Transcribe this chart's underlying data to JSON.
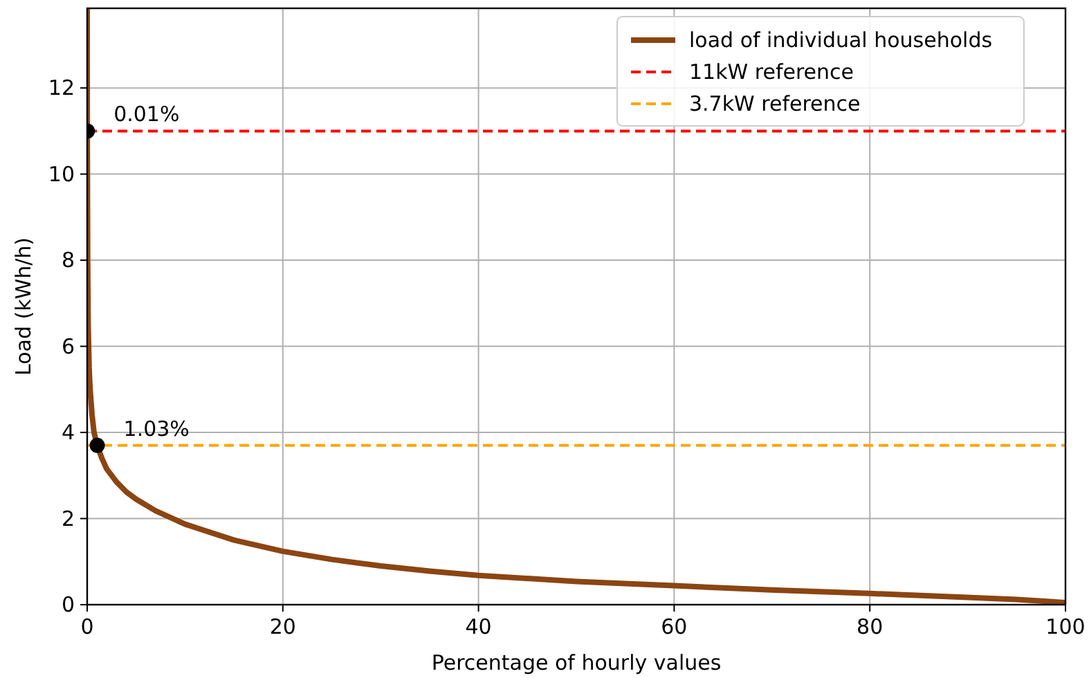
{
  "chart_data": {
    "type": "line",
    "xlabel": "Percentage of hourly values",
    "ylabel": "Load (kWh/h)",
    "xlim": [
      0,
      100
    ],
    "ylim": [
      0,
      13.85
    ],
    "xticks": [
      0,
      20,
      40,
      60,
      80,
      100
    ],
    "yticks": [
      0,
      2,
      4,
      6,
      8,
      10,
      12
    ],
    "grid": true,
    "legend": "top right",
    "line_style": "solid",
    "series": [
      {
        "name": "load of individual households",
        "color": "#8b4513",
        "x": [
          0,
          0.01,
          0.05,
          0.1,
          0.2,
          0.3,
          0.5,
          0.7,
          1.03,
          1.5,
          2,
          3,
          4,
          5,
          7,
          10,
          15,
          20,
          25,
          30,
          35,
          40,
          50,
          60,
          70,
          80,
          90,
          95,
          100
        ],
        "values": [
          13.85,
          11,
          8,
          6.5,
          5.5,
          5,
          4.4,
          4,
          3.7,
          3.4,
          3.15,
          2.85,
          2.62,
          2.45,
          2.18,
          1.87,
          1.5,
          1.24,
          1.05,
          0.9,
          0.78,
          0.68,
          0.54,
          0.44,
          0.34,
          0.26,
          0.17,
          0.12,
          0.05
        ]
      },
      {
        "type": "scatter",
        "marker": "circle",
        "color": "#000000",
        "x": [
          0.01,
          1.03
        ],
        "values": [
          11,
          3.7
        ]
      }
    ],
    "ref_lines": [
      {
        "axis": "y",
        "value": 11,
        "label": "11kW reference",
        "color": "#ff0000",
        "line_style": "dashed"
      },
      {
        "axis": "y",
        "value": 3.7,
        "label": "3.7kW reference",
        "color": "#ffa500",
        "line_style": "dashed"
      }
    ],
    "annotations": [
      {
        "text": "0.01%",
        "x": 0.01,
        "y": 11
      },
      {
        "text": "1.03%",
        "x": 1.03,
        "y": 3.7
      }
    ]
  }
}
